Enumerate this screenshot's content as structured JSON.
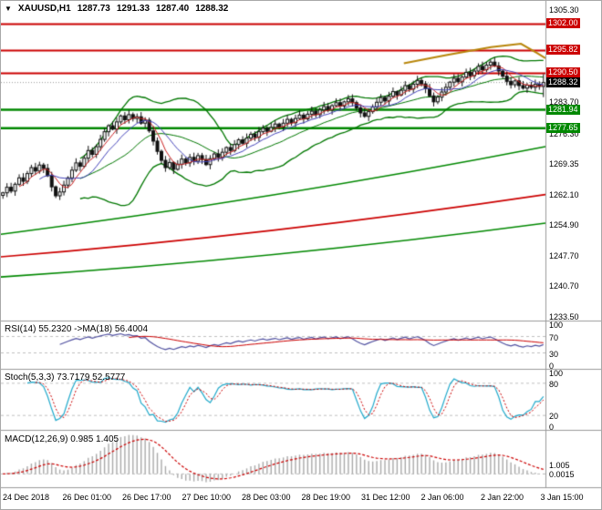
{
  "header": {
    "symbol": "XAUUSD,H1",
    "open": "1287.73",
    "high": "1291.33",
    "low": "1287.40",
    "close": "1288.32"
  },
  "colors": {
    "bull": "#ffffff",
    "bear": "#111111",
    "wick": "#111111",
    "bollinger": "#007700",
    "ma_fast_red": "#cc2222",
    "ma_fast_blue": "#4444bb",
    "resistance": "#cc0000",
    "support": "#008800",
    "grid": "#c0c0c0",
    "divider": "#9a9a9a",
    "rsi_line": "#5050a0",
    "rsi_ma": "#cc0000",
    "stoch_k": "#22aacc",
    "stoch_d": "#cc0000",
    "macd_hist": "#aaaaaa",
    "macd_signal": "#cc0000",
    "trendline": "#b8860b",
    "current_price_bg": "#000000"
  },
  "chart_data": [
    {
      "type": "candlestick",
      "title": "XAUUSD,H1",
      "xlabel": "",
      "ylabel": "",
      "grid": false,
      "ylim": [
        1232.8,
        1307.0
      ],
      "x_labels": [
        "24 Dec 2018",
        "26 Dec 01:00",
        "26 Dec 17:00",
        "27 Dec 10:00",
        "28 Dec 03:00",
        "28 Dec 19:00",
        "31 Dec 12:00",
        "2 Jan 06:00",
        "2 Jan 22:00",
        "3 Jan 15:00"
      ],
      "y_ticks": [
        "1305.30",
        "1296.10",
        "1283.70",
        "1276.30",
        "1269.35",
        "1262.10",
        "1254.90",
        "1247.70",
        "1240.70",
        "1233.50"
      ],
      "closes": [
        1262.5,
        1263.8,
        1262.9,
        1264.5,
        1266.0,
        1265.2,
        1267.0,
        1268.4,
        1267.6,
        1269.0,
        1268.2,
        1266.5,
        1263.9,
        1261.8,
        1262.7,
        1264.3,
        1266.0,
        1267.8,
        1269.5,
        1268.7,
        1270.6,
        1272.4,
        1271.5,
        1273.3,
        1275.0,
        1276.8,
        1278.2,
        1277.4,
        1279.1,
        1280.5,
        1279.6,
        1280.8,
        1279.9,
        1280.3,
        1278.8,
        1279.5,
        1277.0,
        1274.6,
        1272.2,
        1270.1,
        1268.4,
        1269.6,
        1268.0,
        1269.2,
        1270.4,
        1269.5,
        1270.8,
        1269.9,
        1271.2,
        1270.3,
        1269.1,
        1270.5,
        1271.6,
        1270.8,
        1272.0,
        1273.1,
        1272.4,
        1273.8,
        1274.9,
        1274.1,
        1275.3,
        1276.2,
        1275.5,
        1276.8,
        1277.6,
        1276.9,
        1277.8,
        1278.6,
        1277.9,
        1278.8,
        1279.7,
        1278.9,
        1279.9,
        1280.7,
        1279.8,
        1280.9,
        1281.6,
        1280.8,
        1281.9,
        1282.7,
        1281.9,
        1282.9,
        1283.6,
        1282.8,
        1283.8,
        1284.5,
        1283.6,
        1282.4,
        1281.2,
        1280.4,
        1281.5,
        1282.6,
        1283.7,
        1284.8,
        1284.0,
        1285.1,
        1286.2,
        1285.4,
        1286.5,
        1287.6,
        1286.8,
        1287.9,
        1288.8,
        1288.0,
        1286.9,
        1285.2,
        1283.8,
        1284.9,
        1286.1,
        1287.2,
        1288.4,
        1289.3,
        1288.5,
        1289.6,
        1290.7,
        1289.9,
        1291.0,
        1292.1,
        1291.3,
        1292.4,
        1293.1,
        1292.2,
        1291.0,
        1289.8,
        1288.6,
        1287.8,
        1288.7,
        1287.6,
        1287.0,
        1287.7,
        1287.2,
        1287.9,
        1287.4,
        1288.32
      ],
      "levels": [
        {
          "value": 1302.0,
          "label": "1302.00",
          "type": "resistance"
        },
        {
          "value": 1295.82,
          "label": "1295.82",
          "type": "resistance"
        },
        {
          "value": 1290.5,
          "label": "1290.50",
          "type": "resistance"
        },
        {
          "value": 1281.94,
          "label": "1281.94",
          "type": "support"
        },
        {
          "value": 1277.65,
          "label": "1277.65",
          "type": "support"
        }
      ],
      "current_price": "1288.32",
      "long_mas": [
        {
          "from": 1252.8,
          "to": 1273.3,
          "color_key": "support"
        },
        {
          "from": 1247.5,
          "to": 1262.1,
          "color_key": "resistance"
        },
        {
          "from": 1242.8,
          "to": 1255.4,
          "color_key": "support"
        }
      ],
      "trendline_points": [
        [
          0.74,
          1292.8
        ],
        [
          0.82,
          1294.8
        ],
        [
          0.9,
          1296.6
        ],
        [
          0.955,
          1297.4
        ],
        [
          0.985,
          1295.2
        ],
        [
          1.0,
          1294.0
        ]
      ],
      "bollinger": {
        "period": 20,
        "deviation": 2
      },
      "ma_fast_periods": [
        5,
        10
      ]
    },
    {
      "type": "line",
      "name": "RSI",
      "label": "RSI(14) 55.2320 ->MA(18) 56.4004",
      "params": {
        "period": 14,
        "ma_period": 18
      },
      "last_values": {
        "rsi": "55.2320",
        "ma": "56.4004"
      },
      "levels": [
        70,
        30
      ],
      "y_ticks": [
        "100",
        "70",
        "30",
        "0"
      ],
      "ylim": [
        0,
        100
      ]
    },
    {
      "type": "line",
      "name": "Stochastic",
      "label": "Stoch(5,3,3) 73.7179 52.5777",
      "params": {
        "k": 5,
        "d": 3,
        "slowing": 3
      },
      "last_values": {
        "k": "73.7179",
        "d": "52.5777"
      },
      "levels": [
        80,
        20
      ],
      "y_ticks": [
        "100",
        "80",
        "20",
        "0"
      ],
      "ylim": [
        0,
        100
      ]
    },
    {
      "type": "macd",
      "name": "MACD",
      "label": "MACD(12,26,9) 0.985 1.405",
      "params": {
        "fast": 12,
        "slow": 26,
        "signal": 9
      },
      "last_values": {
        "macd": "0.985",
        "signal": "1.405"
      },
      "y_ticks": [
        "1.005",
        "0.0015"
      ]
    }
  ]
}
